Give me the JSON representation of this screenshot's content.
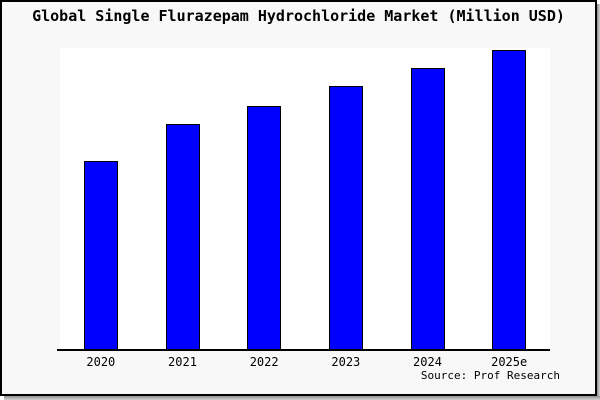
{
  "window": {
    "background_color": "#f8f8f8",
    "plot_background_color": "#ffffff",
    "border_color": "#000000"
  },
  "chart_data": {
    "type": "bar",
    "title": "Global Single Flurazepam Hydrochloride Market (Million USD)",
    "categories": [
      "2020",
      "2021",
      "2022",
      "2023",
      "2024",
      "2025e"
    ],
    "values": [
      63,
      75.5,
      81.5,
      88,
      94,
      100
    ],
    "values_note": "relative scale estimated from bar heights; y-axis unlabeled, indexed to 2025e = 100",
    "xlabel": "",
    "ylabel": "",
    "ylim": [
      0,
      101
    ],
    "grid": false,
    "legend": false,
    "y_axis_visible": false,
    "bar_color": "#0000ff",
    "bar_border_color": "#000000"
  },
  "footer": {
    "source": "Source: Prof Research"
  }
}
